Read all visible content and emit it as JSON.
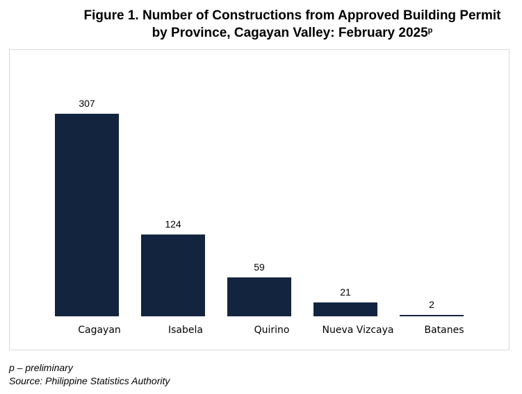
{
  "title": {
    "line1": "Figure 1. Number of Constructions from Approved Building Permit",
    "line2": "by Province, Cagayan Valley: February 2025",
    "superscript": "p"
  },
  "chart_data": {
    "type": "bar",
    "categories": [
      "Cagayan",
      "Isabela",
      "Quirino",
      "Nueva Vizcaya",
      "Batanes"
    ],
    "values": [
      307,
      124,
      59,
      21,
      2
    ],
    "title": "Figure 1. Number of Constructions from Approved Building Permit by Province, Cagayan Valley: February 2025",
    "xlabel": "",
    "ylabel": "",
    "ylim": [
      0,
      307
    ],
    "grid": false,
    "legend": "none",
    "bar_color": "#13243f"
  },
  "notes": {
    "preliminary": "p – preliminary",
    "source": "Source: Philippine Statistics Authority"
  }
}
